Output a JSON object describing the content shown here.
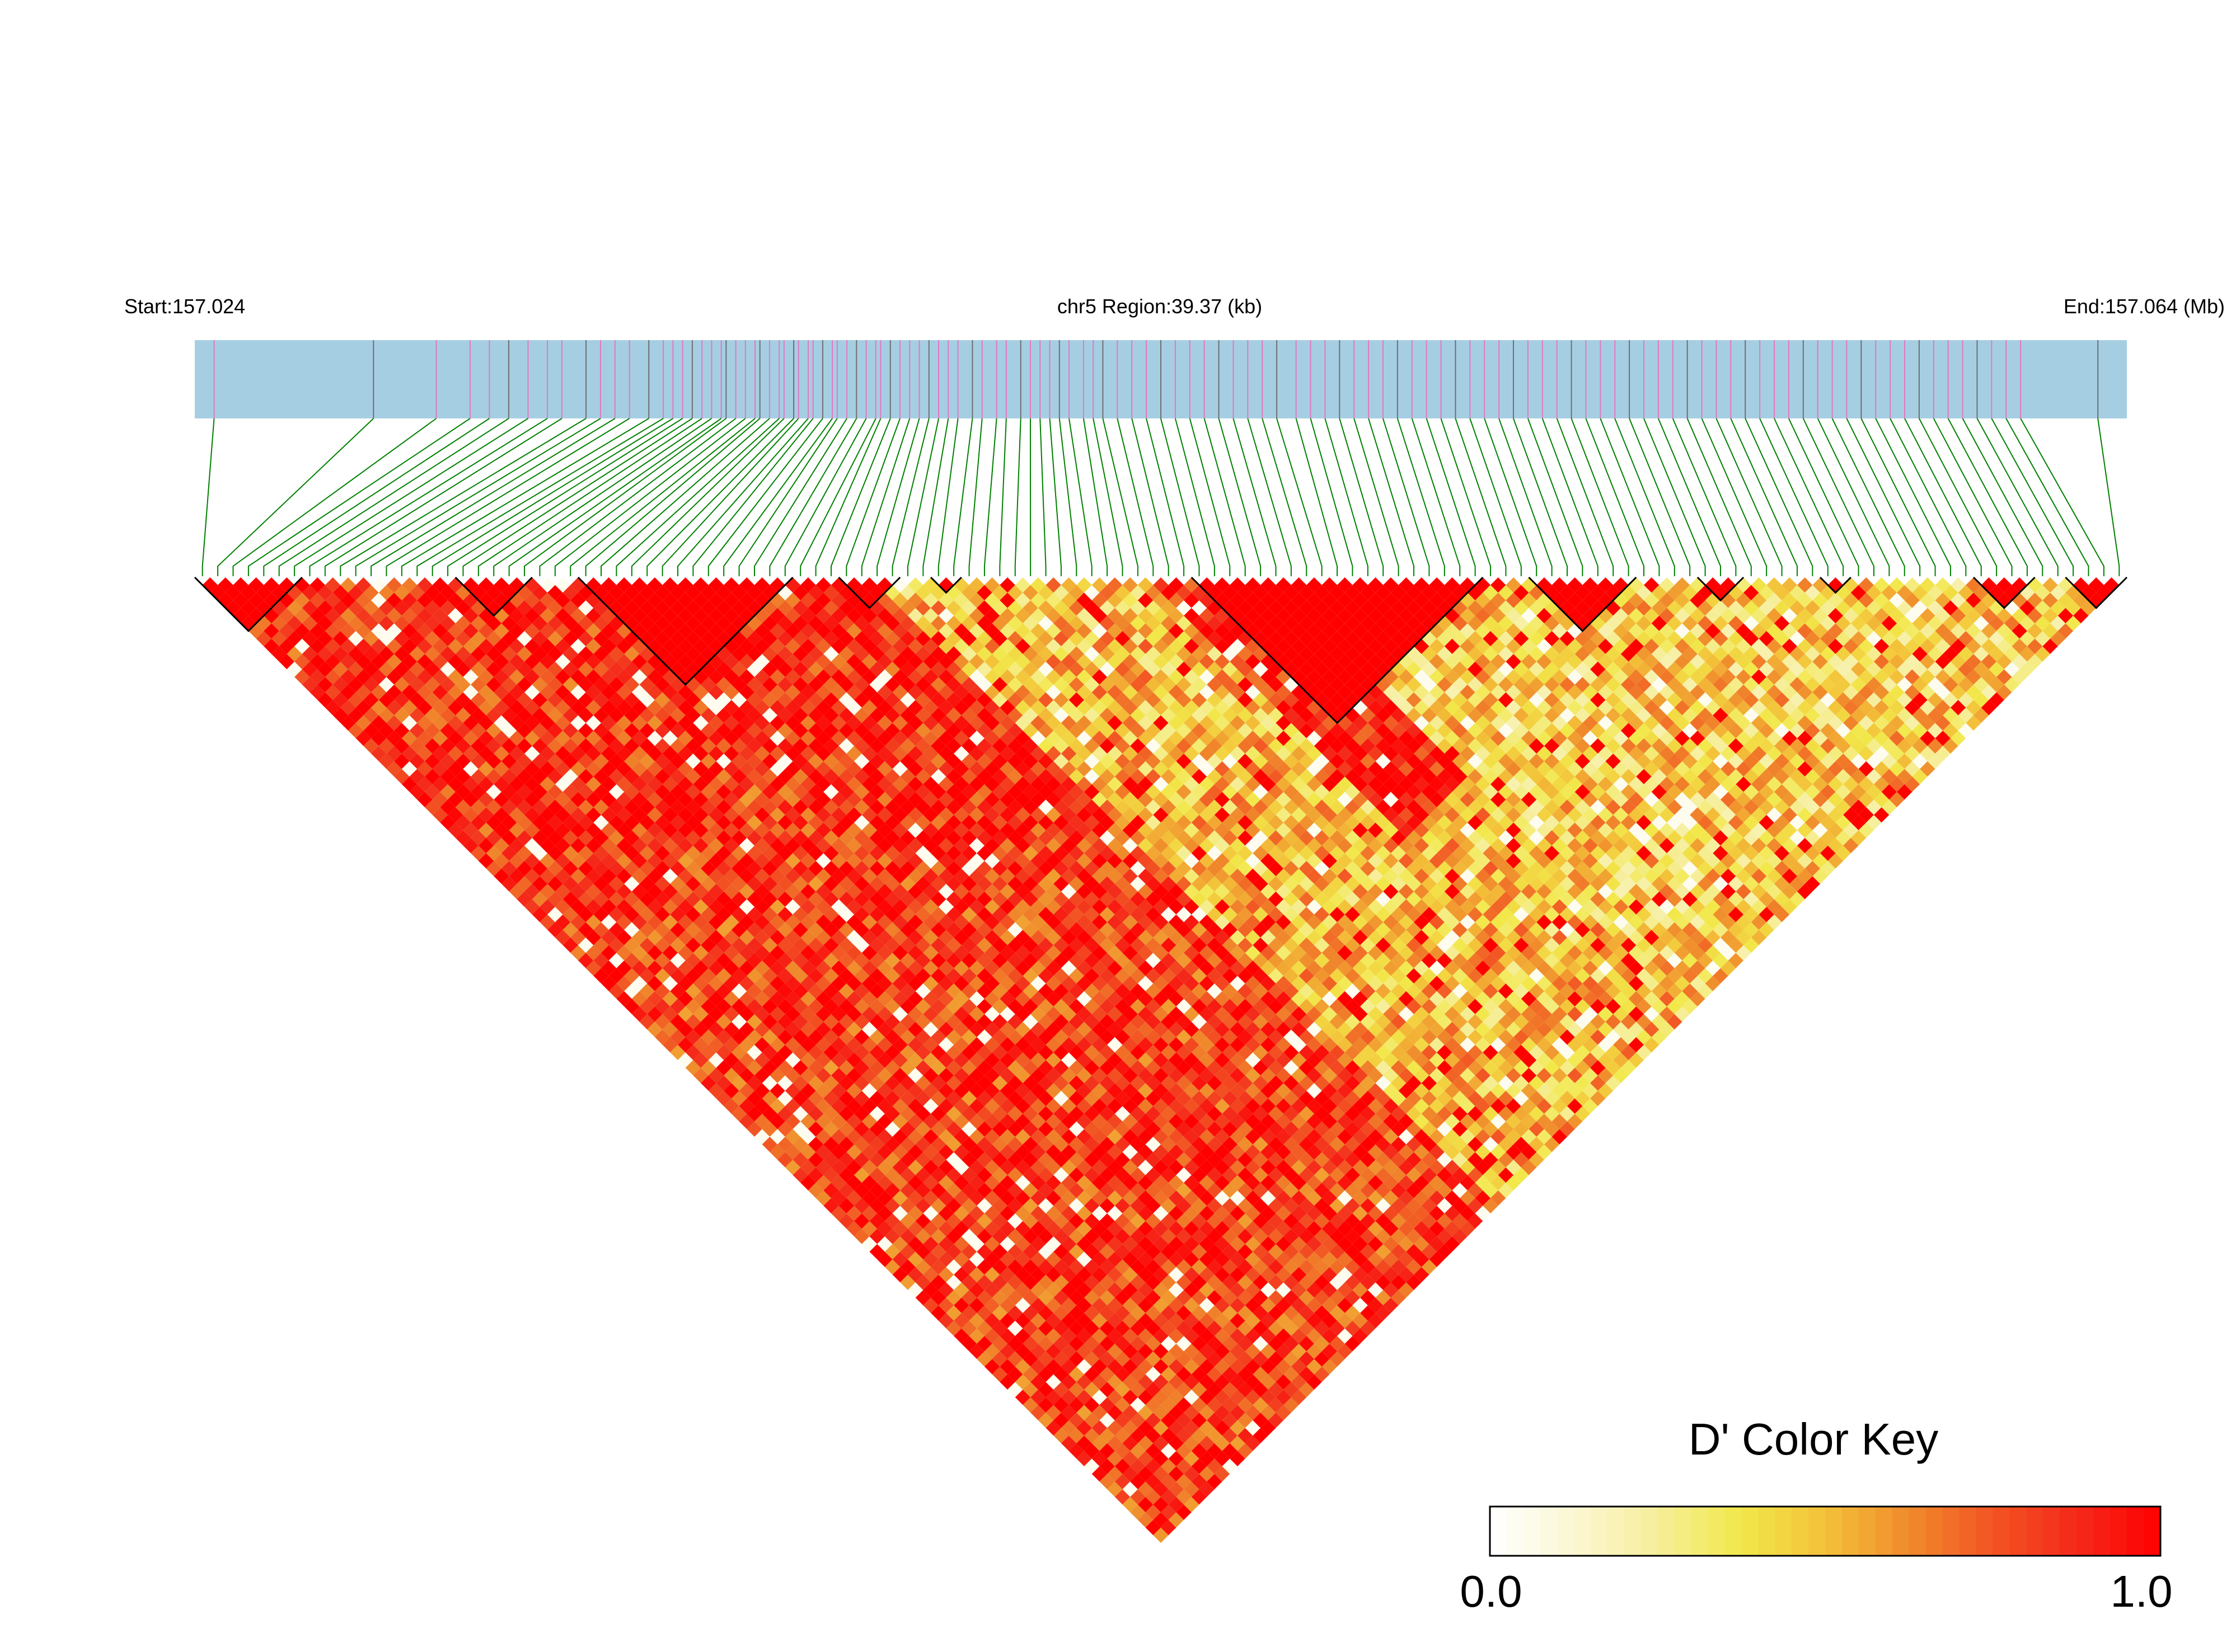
{
  "header": {
    "start_label": "Start:157.024",
    "region_label": "chr5 Region:39.37 (kb)",
    "end_label": "End:157.064 (Mb)"
  },
  "colors": {
    "track_bg": "#a6cee3",
    "snp_tick_pink": "#e377c2",
    "snp_tick_gray": "#6f6f6f",
    "connector": "#008000",
    "ld_high": "#ff0000",
    "ld_mid": "#ef5a1e",
    "ld_low": "#f2e84a",
    "ld_zero": "#ffffff",
    "block_outline": "#000000"
  },
  "legend": {
    "title": "D' Color Key",
    "min_label": "0.0",
    "max_label": "1.0",
    "gradient": [
      "#ffffff",
      "#fbf7d4",
      "#f6ee9a",
      "#f2e84a",
      "#f3c139",
      "#f08a2c",
      "#f25423",
      "#f4291a",
      "#ff0000"
    ]
  },
  "chart_data": {
    "type": "heatmap",
    "title": "",
    "chromosome": "chr5",
    "region_start_mb": 157.024,
    "region_end_mb": 157.064,
    "region_length_kb": 39.37,
    "snp_count": 126,
    "metric": "D'",
    "value_range": [
      0.0,
      1.0
    ],
    "snp_positions_mb": [
      157.0244,
      157.0277,
      157.029,
      157.0297,
      157.0301,
      157.0305,
      157.0309,
      157.0313,
      157.0316,
      157.0321,
      157.0324,
      157.0327,
      157.033,
      157.0334,
      157.0337,
      157.0339,
      157.0341,
      157.0343,
      157.0345,
      157.0347,
      157.0349,
      157.035,
      157.0352,
      157.0354,
      157.0356,
      157.0357,
      157.0359,
      157.0361,
      157.0362,
      157.0364,
      157.0365,
      157.0367,
      157.0368,
      157.037,
      157.0372,
      157.0373,
      157.0375,
      157.0377,
      157.0379,
      157.0381,
      157.0382,
      157.0384,
      157.0386,
      157.0388,
      157.039,
      157.0392,
      157.0394,
      157.0396,
      157.0398,
      157.0401,
      157.0403,
      157.0406,
      157.0408,
      157.0411,
      157.0413,
      157.0415,
      157.0417,
      157.0419,
      157.0421,
      157.0424,
      157.0426,
      157.0428,
      157.0431,
      157.0434,
      157.0437,
      157.044,
      157.0443,
      157.0446,
      157.0449,
      157.0452,
      157.0455,
      157.0458,
      157.0461,
      157.0464,
      157.0468,
      157.0471,
      157.0474,
      157.0477,
      157.048,
      157.0483,
      157.0486,
      157.0489,
      157.0492,
      157.0495,
      157.0498,
      157.0501,
      157.0504,
      157.0507,
      157.051,
      157.0513,
      157.0516,
      157.0519,
      157.0522,
      157.0525,
      157.0528,
      157.0531,
      157.0534,
      157.0537,
      157.054,
      157.0543,
      157.0546,
      157.0549,
      157.0552,
      157.0555,
      157.0558,
      157.0561,
      157.0564,
      157.0567,
      157.057,
      157.0573,
      157.0576,
      157.0579,
      157.0582,
      157.0585,
      157.0588,
      157.0591,
      157.0594,
      157.0597,
      157.06,
      157.0603,
      157.0606,
      157.0609,
      157.0612,
      157.0615,
      157.0618,
      157.0634
    ],
    "ld_blocks": [
      [
        0,
        6
      ],
      [
        17,
        21
      ],
      [
        25,
        38
      ],
      [
        42,
        45
      ],
      [
        48,
        49
      ],
      [
        65,
        83
      ],
      [
        87,
        93
      ],
      [
        98,
        100
      ],
      [
        106,
        107
      ],
      [
        116,
        119
      ],
      [
        122,
        125
      ]
    ],
    "regions": [
      {
        "from": 0,
        "to": 48,
        "dprime_mean": 0.86
      },
      {
        "from": 28,
        "to": 70,
        "dprime_mean": 0.88
      },
      {
        "from": 44,
        "to": 70,
        "dprime_mean": 0.5
      },
      {
        "from": 62,
        "to": 95,
        "dprime_mean": 0.9
      },
      {
        "from": 70,
        "to": 125,
        "dprime_mean": 0.45
      }
    ]
  }
}
